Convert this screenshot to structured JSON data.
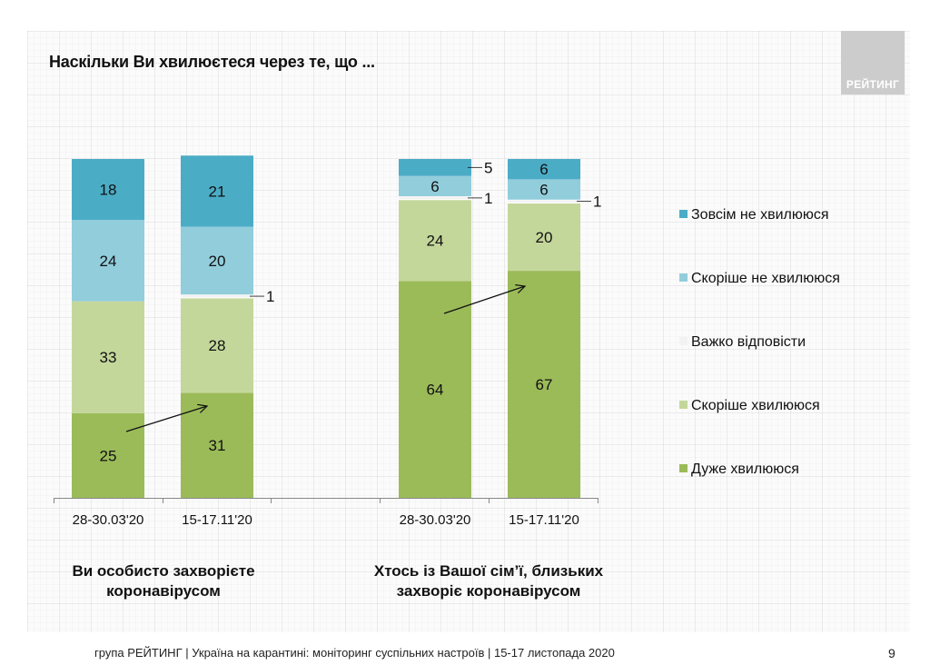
{
  "slide": {
    "title": "Наскільки Ви хвилюєтеся через те, що ...",
    "logo_text": "РЕЙТИНГ",
    "footer": "група РЕЙТИНГ | Україна на карантині: моніторинг суспільних настроїв | 15-17 листопада 2020",
    "page_number": "9"
  },
  "chart_data": {
    "type": "bar",
    "stacked": true,
    "title": "Наскільки Ви хвилюєтеся через те, що ...",
    "xlabel": "",
    "ylabel": "",
    "ylim": [
      0,
      100
    ],
    "grid": false,
    "legend_position": "right",
    "groups": [
      {
        "label": "Ви особисто захворієте коронавірусом",
        "label_lines": [
          "Ви особисто захворієте",
          "коронавірусом"
        ],
        "categories": [
          "28-30.03'20",
          "15-17.11'20"
        ]
      },
      {
        "label": "Хтось із Вашої сім’ї, близьких захворіє коронавірусом",
        "label_lines": [
          "Хтось із Вашої сім’ї, близьких",
          "захворіє коронавірусом"
        ],
        "categories": [
          "28-30.03'20",
          "15-17.11'20"
        ]
      }
    ],
    "categories": [
      "28-30.03'20",
      "15-17.11'20",
      "28-30.03'20",
      "15-17.11'20"
    ],
    "series": [
      {
        "name": "Дуже хвилююся",
        "color": "#9bbb59",
        "values": [
          25,
          31,
          64,
          67
        ]
      },
      {
        "name": "Скоріше хвилююся",
        "color": "#c4d79b",
        "values": [
          33,
          28,
          24,
          20
        ]
      },
      {
        "name": "Важко відповісти",
        "color": "#f2f2f2",
        "values": [
          0,
          1,
          1,
          1
        ]
      },
      {
        "name": "Скоріше не хвилююся",
        "color": "#92cddc",
        "values": [
          24,
          20,
          6,
          6
        ]
      },
      {
        "name": "Зовсім не хвилююся",
        "color": "#4bacc6",
        "values": [
          18,
          21,
          5,
          6
        ]
      }
    ],
    "legend_order": [
      "Зовсім не хвилююся",
      "Скоріше не хвилююся",
      "Важко відповісти",
      "Скоріше хвилююся",
      "Дуже хвилююся"
    ],
    "annotations": [
      {
        "type": "arrow",
        "description": "trend arrow: Дуже хвилююся increase",
        "from_category": 0,
        "to_category": 1
      },
      {
        "type": "arrow",
        "description": "trend arrow: Дуже хвилююся increase",
        "from_category": 2,
        "to_category": 3
      }
    ]
  }
}
